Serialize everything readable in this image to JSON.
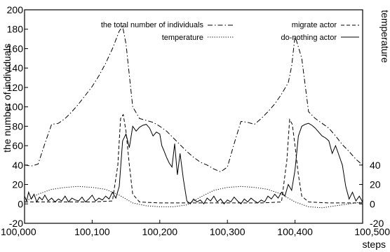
{
  "chart_data": {
    "type": "line",
    "title": "",
    "xlabel": "steps",
    "ylabel": "the number of individuals",
    "y2label": "temperature",
    "xlim": [
      100000,
      100500
    ],
    "ylim": [
      -20,
      200
    ],
    "y2lim": [
      -20,
      200
    ],
    "x_ticks": [
      "100,000",
      "100,100",
      "100,200",
      "100,300",
      "100,400",
      "100,500"
    ],
    "x_tick_values": [
      100000,
      100100,
      100200,
      100300,
      100400,
      100500
    ],
    "y_ticks": [
      "-20",
      "0",
      "20",
      "40",
      "60",
      "80",
      "100",
      "120",
      "140",
      "160",
      "180",
      "200"
    ],
    "y_tick_values": [
      -20,
      0,
      20,
      40,
      60,
      80,
      100,
      120,
      140,
      160,
      180,
      200
    ],
    "y2_ticks": [
      "-20",
      "0",
      "20",
      "40"
    ],
    "y2_tick_values": [
      -20,
      0,
      20,
      40
    ],
    "grid": false,
    "legend_position": "top",
    "series": [
      {
        "name": "the total number of individuals",
        "style": "dash-dot",
        "x": [
          100000,
          100010,
          100020,
          100030,
          100040,
          100050,
          100060,
          100070,
          100080,
          100090,
          100100,
          100110,
          100120,
          100130,
          100140,
          100145,
          100150,
          100160,
          100170,
          100180,
          100190,
          100200,
          100210,
          100220,
          100230,
          100240,
          100250,
          100260,
          100270,
          100280,
          100290,
          100300,
          100310,
          100320,
          100330,
          100340,
          100350,
          100360,
          100370,
          100380,
          100390,
          100395,
          100400,
          100410,
          100420,
          100430,
          100440,
          100450,
          100460,
          100470,
          100480,
          100490,
          100500
        ],
        "values": [
          40,
          39,
          41,
          62,
          82,
          83,
          88,
          95,
          103,
          112,
          121,
          132,
          145,
          160,
          178,
          183,
          165,
          100,
          88,
          86,
          84,
          80,
          75,
          68,
          61,
          54,
          48,
          43,
          40,
          36,
          33,
          38,
          62,
          85,
          84,
          82,
          88,
          95,
          103,
          113,
          125,
          142,
          173,
          150,
          95,
          88,
          83,
          78,
          70,
          61,
          54,
          46,
          40
        ]
      },
      {
        "name": "temperature",
        "style": "dotted",
        "x": [
          100000,
          100020,
          100040,
          100060,
          100080,
          100100,
          100120,
          100140,
          100160,
          100180,
          100200,
          100220,
          100240,
          100260,
          100280,
          100300,
          100320,
          100340,
          100360,
          100380,
          100400,
          100420,
          100440,
          100460,
          100480,
          100500
        ],
        "values": [
          2,
          10,
          15,
          17,
          18,
          17,
          15,
          9,
          1,
          -2,
          -3,
          -3,
          -1,
          7,
          14,
          17,
          18,
          17,
          15,
          10,
          2,
          -3,
          -4,
          -2,
          0,
          2
        ]
      },
      {
        "name": "migrate actor",
        "style": "dashed",
        "x": [
          100000,
          100050,
          100100,
          100130,
          100138,
          100142,
          100146,
          100150,
          100155,
          100160,
          100170,
          100200,
          100250,
          100300,
          100350,
          100380,
          100388,
          100392,
          100396,
          100400,
          100405,
          100410,
          100420,
          100450,
          100500
        ],
        "values": [
          2,
          2,
          2,
          3,
          40,
          88,
          92,
          75,
          40,
          10,
          2,
          1,
          1,
          1,
          1,
          2,
          45,
          87,
          82,
          60,
          30,
          8,
          2,
          1,
          1
        ]
      },
      {
        "name": "do-nothing actor",
        "style": "solid",
        "x": [
          100000,
          100003,
          100006,
          100010,
          100014,
          100018,
          100022,
          100026,
          100030,
          100035,
          100040,
          100045,
          100050,
          100055,
          100060,
          100065,
          100070,
          100075,
          100080,
          100085,
          100090,
          100095,
          100100,
          100105,
          100110,
          100115,
          100120,
          100125,
          100130,
          100135,
          100140,
          100145,
          100150,
          100155,
          100160,
          100165,
          100170,
          100175,
          100180,
          100185,
          100190,
          100195,
          100200,
          100203,
          100206,
          100210,
          100214,
          100218,
          100222,
          100226,
          100230,
          100235,
          100240,
          100245,
          100250,
          100255,
          100260,
          100265,
          100270,
          100275,
          100280,
          100285,
          100290,
          100295,
          100300,
          100305,
          100310,
          100315,
          100320,
          100325,
          100330,
          100335,
          100340,
          100345,
          100350,
          100355,
          100360,
          100365,
          100370,
          100375,
          100380,
          100385,
          100390,
          100395,
          100400,
          100405,
          100410,
          100415,
          100420,
          100425,
          100430,
          100435,
          100440,
          100445,
          100450,
          100455,
          100460,
          100465,
          100470,
          100475,
          100480,
          100485,
          100490,
          100495,
          100500
        ],
        "values": [
          8,
          3,
          12,
          5,
          10,
          2,
          7,
          4,
          9,
          3,
          6,
          2,
          5,
          3,
          8,
          2,
          6,
          4,
          3,
          7,
          2,
          5,
          9,
          3,
          6,
          4,
          8,
          5,
          12,
          6,
          18,
          65,
          72,
          58,
          80,
          75,
          79,
          81,
          82,
          78,
          70,
          74,
          72,
          60,
          55,
          48,
          42,
          38,
          62,
          30,
          52,
          25,
          3,
          0,
          5,
          2,
          4,
          0,
          6,
          3,
          8,
          2,
          5,
          0,
          4,
          2,
          7,
          3,
          0,
          5,
          2,
          6,
          3,
          1,
          4,
          2,
          8,
          5,
          10,
          6,
          12,
          8,
          20,
          14,
          35,
          70,
          80,
          82,
          83,
          81,
          78,
          74,
          70,
          68,
          65,
          52,
          60,
          50,
          40,
          18,
          5,
          12,
          3,
          8,
          2
        ]
      }
    ]
  }
}
